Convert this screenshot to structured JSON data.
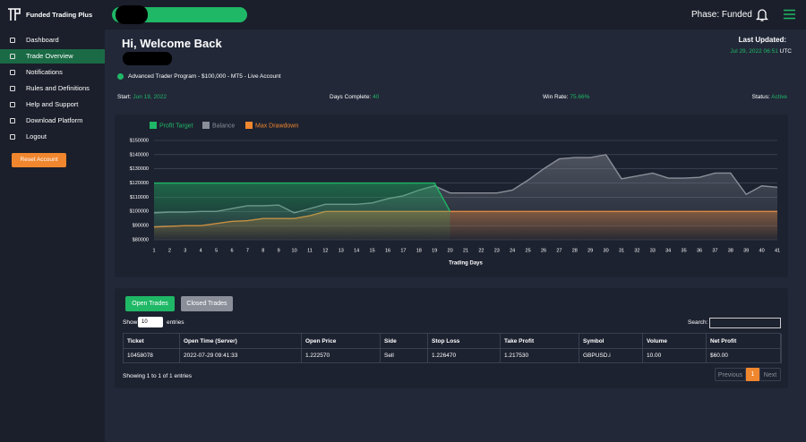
{
  "brand": "Funded Trading Plus",
  "header": {
    "phase": "Phase: Funded"
  },
  "menu": [
    "Dashboard",
    "Trade Overview",
    "Notifications",
    "Rules and Definitions",
    "Help and Support",
    "Download Platform",
    "Logout"
  ],
  "reset_button": "Reset Account",
  "welcome": "Hi, Welcome Back",
  "last_updated": {
    "label": "Last Updated:",
    "time": "Jul 29, 2022 06:51",
    "zone": "UTC"
  },
  "account": "Advanced Trader Program - $100,000 - MT5 - Live Account",
  "stats": [
    {
      "label": "Start:",
      "value": "Jun 19, 2022"
    },
    {
      "label": "Days Complete:",
      "value": "40"
    },
    {
      "label": "Win Rate:",
      "value": "75.66%"
    },
    {
      "label": "Status:",
      "value": "Active"
    }
  ],
  "chart_data": {
    "type": "area",
    "x_label": "Trading Days",
    "x": [
      1,
      2,
      3,
      4,
      5,
      6,
      7,
      8,
      9,
      10,
      11,
      12,
      13,
      14,
      15,
      16,
      17,
      18,
      19,
      20,
      21,
      22,
      23,
      24,
      25,
      26,
      27,
      28,
      29,
      30,
      31,
      32,
      33,
      34,
      35,
      36,
      37,
      38,
      39,
      40,
      41
    ],
    "xlim": [
      1,
      41
    ],
    "ylim": [
      80000,
      150000
    ],
    "yticks": [
      {
        "value": 80000,
        "label": "$80000"
      },
      {
        "value": 90000,
        "label": "$90000"
      },
      {
        "value": 100000,
        "label": "$100000"
      },
      {
        "value": 110000,
        "label": "$110000"
      },
      {
        "value": 120000,
        "label": "$120000"
      },
      {
        "value": 130000,
        "label": "$130000"
      },
      {
        "value": 140000,
        "label": "$140000"
      },
      {
        "value": 150000,
        "label": "$150000"
      }
    ],
    "grid": true,
    "series": [
      {
        "name": "Profit Target",
        "color": "#1fb866",
        "values": [
          120000,
          120000,
          120000,
          120000,
          120000,
          120000,
          120000,
          120000,
          120000,
          120000,
          120000,
          120000,
          120000,
          120000,
          120000,
          120000,
          120000,
          120000,
          120000,
          100000,
          null,
          null,
          null,
          null,
          null,
          null,
          null,
          null,
          null,
          null,
          null,
          null,
          null,
          null,
          null,
          null,
          null,
          null,
          null,
          null,
          null
        ]
      },
      {
        "name": "Balance",
        "color": "#8a8f99",
        "values": [
          99000,
          99500,
          99500,
          100000,
          100000,
          102000,
          104000,
          104000,
          104500,
          99000,
          102000,
          105000,
          105000,
          105000,
          106000,
          109000,
          111000,
          115000,
          118000,
          113000,
          113000,
          113000,
          113000,
          115000,
          122000,
          130000,
          137000,
          138000,
          138000,
          140000,
          123000,
          125000,
          127000,
          123500,
          123500,
          124000,
          127000,
          127000,
          112000,
          118000,
          117000
        ]
      },
      {
        "name": "Max Drawdown",
        "color": "#f0862e",
        "values": [
          89000,
          89500,
          90000,
          90000,
          91500,
          93000,
          93500,
          95000,
          95000,
          95000,
          97000,
          100000,
          100000,
          100000,
          100000,
          100000,
          100000,
          100000,
          100000,
          100000,
          100000,
          100000,
          100000,
          100000,
          100000,
          100000,
          100000,
          100000,
          100000,
          100000,
          100000,
          100000,
          100000,
          100000,
          100000,
          100000,
          100000,
          100000,
          100000,
          100000,
          100000
        ]
      }
    ]
  },
  "tabs": [
    "Open Trades",
    "Closed Trades"
  ],
  "length_control": {
    "show": "Show",
    "count": "10",
    "entries": "entries"
  },
  "search": "Search:",
  "table": {
    "headers": [
      "Ticket",
      "Open Time (Server)",
      "Open Price",
      "Side",
      "Stop Loss",
      "Take Profit",
      "Symbol",
      "Volume",
      "Net Profit"
    ],
    "rows": [
      [
        "10458078",
        "2022-07-29 09:41:33",
        "1.222570",
        "Sell",
        "1.226470",
        "1.217530",
        "GBPUSD.i",
        "10.00",
        "$60.00"
      ]
    ]
  },
  "info": "Showing 1 to 1 of 1 entries",
  "pagination": [
    "Previous",
    "1",
    "Next"
  ]
}
